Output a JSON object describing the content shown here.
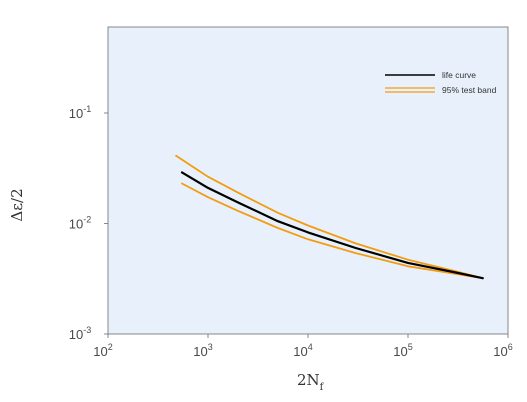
{
  "chart_data": {
    "type": "line",
    "title": "",
    "xlabel": {
      "base": "2N",
      "subscript": "f"
    },
    "ylabel": "Δε/2",
    "x_scale": "log",
    "y_scale": "log",
    "xlim": [
      100,
      1000000
    ],
    "ylim": [
      0.001,
      0.6
    ],
    "x_ticks": [
      {
        "value": 100,
        "base": "10",
        "exp": "2"
      },
      {
        "value": 1000,
        "base": "10",
        "exp": "3"
      },
      {
        "value": 10000,
        "base": "10",
        "exp": "4"
      },
      {
        "value": 100000,
        "base": "10",
        "exp": "5"
      },
      {
        "value": 1000000,
        "base": "10",
        "exp": "6"
      }
    ],
    "y_ticks": [
      {
        "value": 0.001,
        "base": "10",
        "exp": "-3"
      },
      {
        "value": 0.01,
        "base": "10",
        "exp": "-2"
      },
      {
        "value": 0.1,
        "base": "10",
        "exp": "-1"
      }
    ],
    "grid": false,
    "legend_position": "top-right",
    "background_color": "#e8f1fb",
    "series": [
      {
        "name": "life curve",
        "color": "#000000",
        "x": [
          550,
          1000,
          2000,
          5000,
          10000,
          30000,
          100000,
          300000,
          560000
        ],
        "y": [
          0.029,
          0.021,
          0.0155,
          0.0105,
          0.0083,
          0.006,
          0.0044,
          0.0036,
          0.0032
        ]
      },
      {
        "name": "95% test band",
        "color": "#f39c12",
        "x": [
          480,
          1000,
          2000,
          5000,
          10000,
          30000,
          100000,
          300000,
          560000
        ],
        "y": [
          0.041,
          0.0265,
          0.019,
          0.0125,
          0.0096,
          0.0066,
          0.0047,
          0.0037,
          0.0032
        ]
      },
      {
        "name": "",
        "color": "#f39c12",
        "x": [
          550,
          1000,
          2000,
          5000,
          10000,
          30000,
          100000,
          300000,
          560000
        ],
        "y": [
          0.023,
          0.0173,
          0.013,
          0.0091,
          0.0072,
          0.0054,
          0.0041,
          0.0035,
          0.0032
        ]
      }
    ]
  }
}
